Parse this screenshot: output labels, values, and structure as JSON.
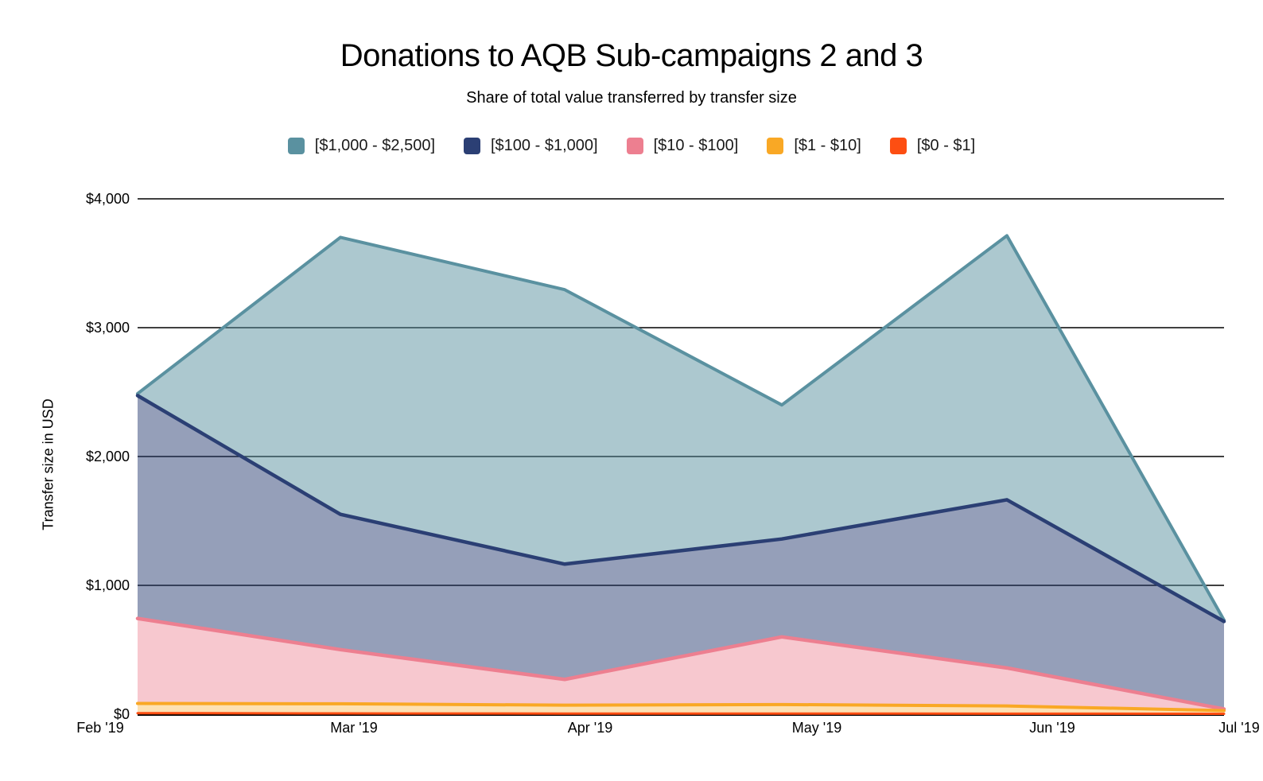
{
  "page": {
    "title": "Donations to AQB Sub-campaigns 2 and 3",
    "subtitle": "Share of total value transferred by transfer size"
  },
  "y_axis": {
    "title": "Transfer size in USD",
    "ticks": [
      "$4,000",
      "$3,000",
      "$2,000",
      "$1,000",
      "$0"
    ],
    "tick_values": [
      4000,
      3000,
      2000,
      1000,
      0
    ]
  },
  "x_axis": {
    "ticks": [
      "Feb '19",
      "Mar '19",
      "Apr '19",
      "May '19",
      "Jun '19",
      "Jul '19"
    ]
  },
  "legend": [
    {
      "label": "[$1,000 - $2,500]",
      "color": "#5A91A0"
    },
    {
      "label": "[$100 - $1,000]",
      "color": "#2B3F74"
    },
    {
      "label": "[$10 - $100]",
      "color": "#ED7F90"
    },
    {
      "label": "[$1 - $10]",
      "color": "#F9A825"
    },
    {
      "label": "[$0 - $1]",
      "color": "#FD4E12"
    }
  ],
  "chart_data": {
    "type": "area",
    "stacked": true,
    "title": "Donations to AQB Sub-campaigns 2 and 3",
    "subtitle": "Share of total value transferred by transfer size",
    "xlabel": "",
    "ylabel": "Transfer size in USD",
    "ylim": [
      0,
      4000
    ],
    "grid": "horizontal",
    "legend_position": "top",
    "categories": [
      "Feb '19",
      "Mar '19",
      "Apr '19",
      "May '19",
      "Jun '19",
      "Jul '19"
    ],
    "series": [
      {
        "name": "[$0 - $1]",
        "color": "#FD4E12",
        "values": [
          8,
          6,
          5,
          5,
          4,
          3
        ]
      },
      {
        "name": "[$1 - $10]",
        "color": "#F9A825",
        "values": [
          75,
          75,
          65,
          70,
          60,
          25
        ]
      },
      {
        "name": "[$10 - $100]",
        "color": "#ED7F90",
        "values": [
          660,
          420,
          200,
          525,
          295,
          12
        ]
      },
      {
        "name": "[$100 - $1,000]",
        "color": "#2B3F74",
        "values": [
          1730,
          1050,
          895,
          760,
          1305,
          680
        ]
      },
      {
        "name": "[$1,000 - $2,500]",
        "color": "#5A91A0",
        "values": [
          15,
          2150,
          2130,
          1040,
          2050,
          10
        ]
      }
    ],
    "totals": [
      2488,
      3701,
      3295,
      2400,
      3714,
      730
    ]
  }
}
